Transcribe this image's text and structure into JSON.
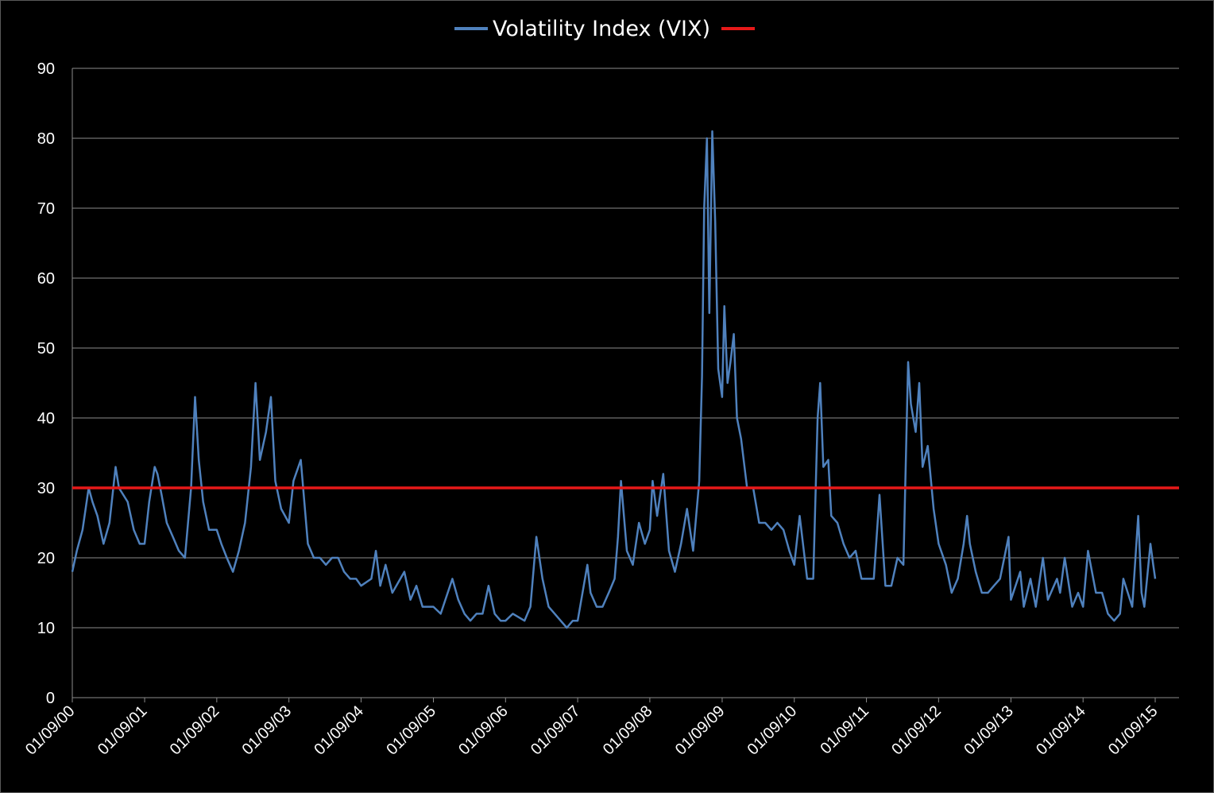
{
  "chart_data": {
    "type": "line",
    "title": "",
    "xlabel": "",
    "ylabel": "",
    "x_type": "date",
    "x_range": [
      "2000-01-09",
      "2015-01-09"
    ],
    "ylim": [
      0,
      90
    ],
    "y_ticks": [
      0,
      10,
      20,
      30,
      40,
      50,
      60,
      70,
      80,
      90
    ],
    "x_tick_labels": [
      "01/09/00",
      "01/09/01",
      "01/09/02",
      "01/09/03",
      "01/09/04",
      "01/09/05",
      "01/09/06",
      "01/09/07",
      "01/09/08",
      "01/09/09",
      "01/09/10",
      "01/09/11",
      "01/09/12",
      "01/09/13",
      "01/09/14",
      "01/09/15"
    ],
    "x_tick_dates": [
      "2000-01-09",
      "2001-01-09",
      "2002-01-09",
      "2003-01-09",
      "2004-01-09",
      "2005-01-09",
      "2006-01-09",
      "2007-01-09",
      "2008-01-09",
      "2009-01-09",
      "2010-01-09",
      "2011-01-09",
      "2012-01-09",
      "2013-01-09",
      "2014-01-09",
      "2015-01-09"
    ],
    "grid": "horizontal",
    "legend_position": "top-center",
    "series": [
      {
        "name": "Volatility Index (VIX)",
        "color": "#4f81bd",
        "points": [
          [
            "2000-01-09",
            18
          ],
          [
            "2000-02-01",
            21
          ],
          [
            "2000-03-01",
            24
          ],
          [
            "2000-04-01",
            30
          ],
          [
            "2000-04-20",
            28
          ],
          [
            "2000-05-15",
            26
          ],
          [
            "2000-06-15",
            22
          ],
          [
            "2000-07-15",
            25
          ],
          [
            "2000-08-15",
            33
          ],
          [
            "2000-09-01",
            30
          ],
          [
            "2000-10-15",
            28
          ],
          [
            "2000-11-15",
            24
          ],
          [
            "2000-12-15",
            22
          ],
          [
            "2001-01-09",
            22
          ],
          [
            "2001-02-01",
            28
          ],
          [
            "2001-03-01",
            33
          ],
          [
            "2001-03-15",
            32
          ],
          [
            "2001-04-05",
            29
          ],
          [
            "2001-05-01",
            25
          ],
          [
            "2001-06-01",
            23
          ],
          [
            "2001-07-01",
            21
          ],
          [
            "2001-08-01",
            20
          ],
          [
            "2001-09-01",
            30
          ],
          [
            "2001-09-21",
            43
          ],
          [
            "2001-10-10",
            34
          ],
          [
            "2001-11-01",
            28
          ],
          [
            "2001-12-01",
            24
          ],
          [
            "2002-01-09",
            24
          ],
          [
            "2002-02-01",
            22
          ],
          [
            "2002-03-01",
            20
          ],
          [
            "2002-04-01",
            18
          ],
          [
            "2002-05-01",
            21
          ],
          [
            "2002-06-01",
            25
          ],
          [
            "2002-07-01",
            33
          ],
          [
            "2002-07-24",
            45
          ],
          [
            "2002-08-15",
            34
          ],
          [
            "2002-09-15",
            38
          ],
          [
            "2002-10-10",
            43
          ],
          [
            "2002-11-01",
            31
          ],
          [
            "2002-12-01",
            27
          ],
          [
            "2003-01-09",
            25
          ],
          [
            "2003-02-01",
            31
          ],
          [
            "2003-03-10",
            34
          ],
          [
            "2003-03-25",
            29
          ],
          [
            "2003-04-15",
            22
          ],
          [
            "2003-05-15",
            20
          ],
          [
            "2003-06-15",
            20
          ],
          [
            "2003-07-15",
            19
          ],
          [
            "2003-08-15",
            20
          ],
          [
            "2003-09-15",
            20
          ],
          [
            "2003-10-15",
            18
          ],
          [
            "2003-11-15",
            17
          ],
          [
            "2003-12-15",
            17
          ],
          [
            "2004-01-09",
            16
          ],
          [
            "2004-03-01",
            17
          ],
          [
            "2004-03-24",
            21
          ],
          [
            "2004-04-15",
            16
          ],
          [
            "2004-05-12",
            19
          ],
          [
            "2004-06-15",
            15
          ],
          [
            "2004-08-15",
            18
          ],
          [
            "2004-09-15",
            14
          ],
          [
            "2004-10-15",
            16
          ],
          [
            "2004-11-15",
            13
          ],
          [
            "2004-12-15",
            13
          ],
          [
            "2005-01-09",
            13
          ],
          [
            "2005-02-15",
            12
          ],
          [
            "2005-04-15",
            17
          ],
          [
            "2005-05-15",
            14
          ],
          [
            "2005-06-15",
            12
          ],
          [
            "2005-07-15",
            11
          ],
          [
            "2005-08-15",
            12
          ],
          [
            "2005-09-15",
            12
          ],
          [
            "2005-10-15",
            16
          ],
          [
            "2005-11-15",
            12
          ],
          [
            "2005-12-15",
            11
          ],
          [
            "2006-01-09",
            11
          ],
          [
            "2006-02-15",
            12
          ],
          [
            "2006-04-15",
            11
          ],
          [
            "2006-05-15",
            13
          ],
          [
            "2006-06-14",
            23
          ],
          [
            "2006-07-15",
            17
          ],
          [
            "2006-08-15",
            13
          ],
          [
            "2006-09-15",
            12
          ],
          [
            "2006-10-15",
            11
          ],
          [
            "2006-11-15",
            10
          ],
          [
            "2006-12-15",
            11
          ],
          [
            "2007-01-09",
            11
          ],
          [
            "2007-02-27",
            19
          ],
          [
            "2007-03-15",
            15
          ],
          [
            "2007-04-15",
            13
          ],
          [
            "2007-05-15",
            13
          ],
          [
            "2007-06-15",
            15
          ],
          [
            "2007-07-15",
            17
          ],
          [
            "2007-08-01",
            23
          ],
          [
            "2007-08-16",
            31
          ],
          [
            "2007-09-15",
            21
          ],
          [
            "2007-10-15",
            19
          ],
          [
            "2007-11-15",
            25
          ],
          [
            "2007-12-15",
            22
          ],
          [
            "2008-01-09",
            24
          ],
          [
            "2008-01-23",
            31
          ],
          [
            "2008-02-15",
            26
          ],
          [
            "2008-03-17",
            32
          ],
          [
            "2008-04-15",
            21
          ],
          [
            "2008-05-15",
            18
          ],
          [
            "2008-06-15",
            22
          ],
          [
            "2008-07-15",
            27
          ],
          [
            "2008-08-15",
            21
          ],
          [
            "2008-09-15",
            31
          ],
          [
            "2008-09-29",
            46
          ],
          [
            "2008-10-10",
            70
          ],
          [
            "2008-10-24",
            80
          ],
          [
            "2008-11-05",
            55
          ],
          [
            "2008-11-20",
            81
          ],
          [
            "2008-12-05",
            68
          ],
          [
            "2008-12-20",
            47
          ],
          [
            "2009-01-09",
            43
          ],
          [
            "2009-01-20",
            56
          ],
          [
            "2009-02-05",
            45
          ],
          [
            "2009-02-20",
            48
          ],
          [
            "2009-03-09",
            52
          ],
          [
            "2009-03-25",
            40
          ],
          [
            "2009-04-15",
            37
          ],
          [
            "2009-05-15",
            30
          ],
          [
            "2009-06-15",
            30
          ],
          [
            "2009-07-15",
            25
          ],
          [
            "2009-08-15",
            25
          ],
          [
            "2009-09-15",
            24
          ],
          [
            "2009-10-15",
            25
          ],
          [
            "2009-11-15",
            24
          ],
          [
            "2009-12-15",
            21
          ],
          [
            "2010-01-09",
            19
          ],
          [
            "2010-02-05",
            26
          ],
          [
            "2010-03-15",
            17
          ],
          [
            "2010-04-15",
            17
          ],
          [
            "2010-05-07",
            40
          ],
          [
            "2010-05-20",
            45
          ],
          [
            "2010-06-05",
            33
          ],
          [
            "2010-06-30",
            34
          ],
          [
            "2010-07-15",
            26
          ],
          [
            "2010-08-15",
            25
          ],
          [
            "2010-09-15",
            22
          ],
          [
            "2010-10-15",
            20
          ],
          [
            "2010-11-15",
            21
          ],
          [
            "2010-12-15",
            17
          ],
          [
            "2011-01-09",
            17
          ],
          [
            "2011-02-15",
            17
          ],
          [
            "2011-03-16",
            29
          ],
          [
            "2011-04-15",
            16
          ],
          [
            "2011-05-15",
            16
          ],
          [
            "2011-06-15",
            20
          ],
          [
            "2011-07-15",
            19
          ],
          [
            "2011-08-08",
            48
          ],
          [
            "2011-08-22",
            42
          ],
          [
            "2011-09-15",
            38
          ],
          [
            "2011-10-03",
            45
          ],
          [
            "2011-10-20",
            33
          ],
          [
            "2011-11-15",
            36
          ],
          [
            "2011-12-15",
            27
          ],
          [
            "2012-01-09",
            22
          ],
          [
            "2012-02-15",
            19
          ],
          [
            "2012-03-15",
            15
          ],
          [
            "2012-04-15",
            17
          ],
          [
            "2012-05-15",
            22
          ],
          [
            "2012-06-01",
            26
          ],
          [
            "2012-06-15",
            22
          ],
          [
            "2012-07-15",
            18
          ],
          [
            "2012-08-15",
            15
          ],
          [
            "2012-09-15",
            15
          ],
          [
            "2012-10-15",
            16
          ],
          [
            "2012-11-15",
            17
          ],
          [
            "2012-12-28",
            23
          ],
          [
            "2013-01-09",
            14
          ],
          [
            "2013-02-25",
            18
          ],
          [
            "2013-03-15",
            13
          ],
          [
            "2013-04-18",
            17
          ],
          [
            "2013-05-15",
            13
          ],
          [
            "2013-06-20",
            20
          ],
          [
            "2013-07-15",
            14
          ],
          [
            "2013-08-30",
            17
          ],
          [
            "2013-09-15",
            15
          ],
          [
            "2013-10-08",
            20
          ],
          [
            "2013-11-15",
            13
          ],
          [
            "2013-12-15",
            15
          ],
          [
            "2014-01-09",
            13
          ],
          [
            "2014-02-03",
            21
          ],
          [
            "2014-03-15",
            15
          ],
          [
            "2014-04-15",
            15
          ],
          [
            "2014-05-15",
            12
          ],
          [
            "2014-06-15",
            11
          ],
          [
            "2014-07-15",
            12
          ],
          [
            "2014-08-01",
            17
          ],
          [
            "2014-09-15",
            13
          ],
          [
            "2014-10-15",
            26
          ],
          [
            "2014-11-01",
            15
          ],
          [
            "2014-11-15",
            13
          ],
          [
            "2014-12-16",
            22
          ],
          [
            "2014-12-30",
            19
          ],
          [
            "2015-01-09",
            17
          ]
        ]
      },
      {
        "name": "",
        "color": "#e61919",
        "points": [
          [
            "2000-01-09",
            30
          ],
          [
            "2015-01-09",
            30
          ]
        ]
      }
    ]
  }
}
